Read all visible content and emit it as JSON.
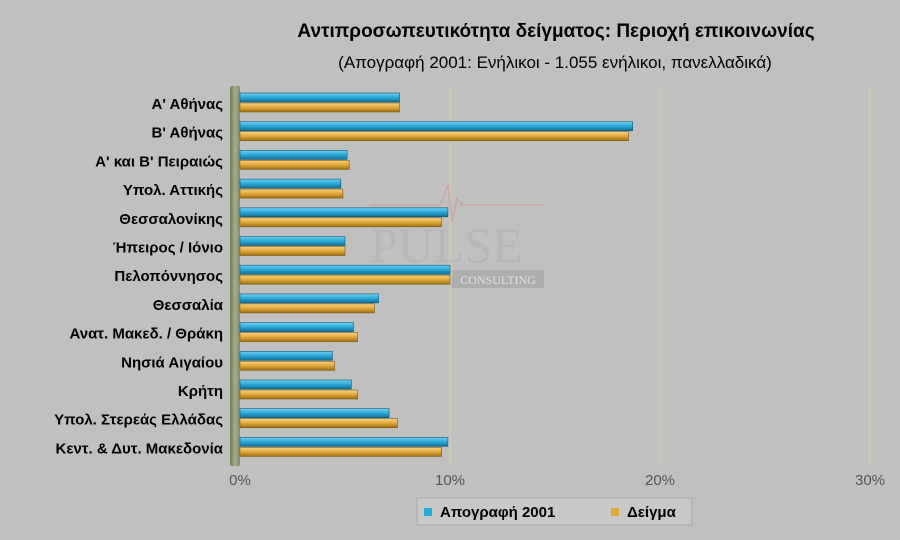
{
  "chart_data": {
    "type": "bar",
    "orientation": "horizontal",
    "title": "Αντιπροσωπευτικότητα δείγματος: Περιοχή επικοινωνίας",
    "subtitle": "(Απογραφή 2001: Ενήλικοι - 1.055 ενήλικοι, πανελλαδικά)",
    "categories": [
      "Α' Αθήνας",
      "Β' Αθήνας",
      "Α' και Β' Πειραιώς",
      "Υπολ. Αττικής",
      "Θεσσαλονίκης",
      "Ήπειρος / Ιόνιο",
      "Πελοπόννησος",
      "Θεσσαλία",
      "Ανατ. Μακεδ. / Θράκη",
      "Νησιά Αιγαίου",
      "Κρήτη",
      "Υπολ. Στερεάς Ελλάδας",
      "Κεντ. & Δυτ. Μακεδονία"
    ],
    "series": [
      {
        "name": "Απογραφή 2001",
        "color": "#2aa8d6",
        "values": [
          7.6,
          18.7,
          5.1,
          4.8,
          9.9,
          5.0,
          10.0,
          6.6,
          5.4,
          4.4,
          5.3,
          7.1,
          9.9
        ]
      },
      {
        "name": "Δείγμα",
        "color": "#e0a838",
        "values": [
          7.6,
          18.5,
          5.2,
          4.9,
          9.6,
          5.0,
          10.0,
          6.4,
          5.6,
          4.5,
          5.6,
          7.5,
          9.6
        ]
      }
    ],
    "xlim": [
      0,
      30
    ],
    "xticks": [
      "0%",
      "10%",
      "20%",
      "30%"
    ],
    "xtick_values": [
      0,
      10,
      20,
      30
    ],
    "grid": true,
    "legend_position": "bottom-right"
  },
  "watermark": {
    "brand": "PULSE",
    "sub": "CONSULTING"
  }
}
